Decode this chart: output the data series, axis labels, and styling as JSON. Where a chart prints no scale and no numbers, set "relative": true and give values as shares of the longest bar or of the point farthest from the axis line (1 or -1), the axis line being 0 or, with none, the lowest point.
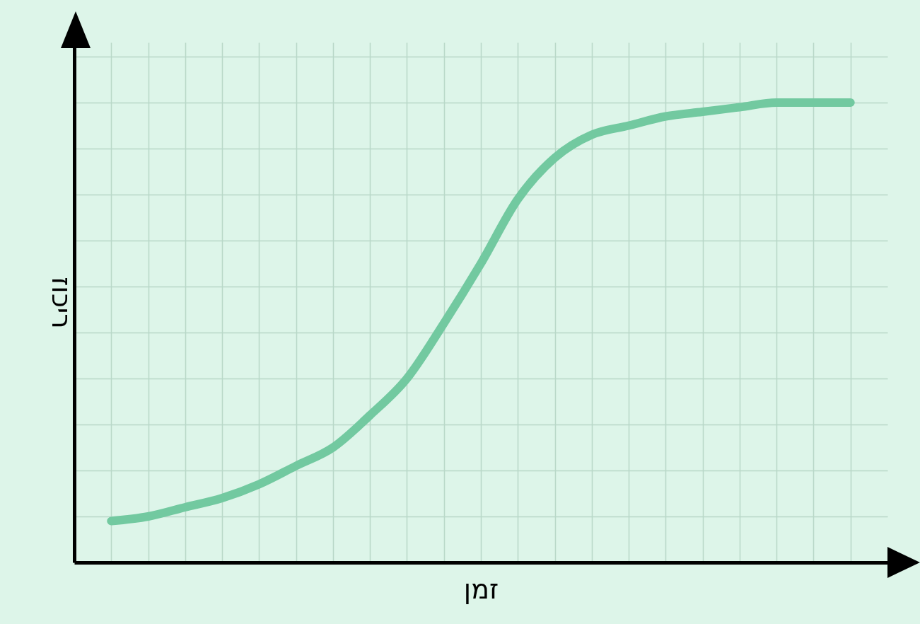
{
  "chart_data": {
    "type": "line",
    "xlabel": "זמן",
    "ylabel": "ריכוז",
    "relative": true,
    "grid": true,
    "categories": [
      null,
      null,
      null,
      null,
      null,
      null,
      null,
      null,
      null,
      null,
      null,
      null,
      null,
      null,
      null,
      null,
      null,
      null,
      null,
      null,
      null
    ],
    "series": [
      {
        "color": "#72c9a0",
        "values": [
          0.09,
          0.1,
          0.12,
          0.14,
          0.17,
          0.21,
          0.25,
          0.32,
          0.4,
          0.52,
          0.65,
          0.79,
          0.88,
          0.93,
          0.95,
          0.97,
          0.98,
          0.99,
          1.0,
          1.0,
          1.0
        ]
      }
    ]
  }
}
